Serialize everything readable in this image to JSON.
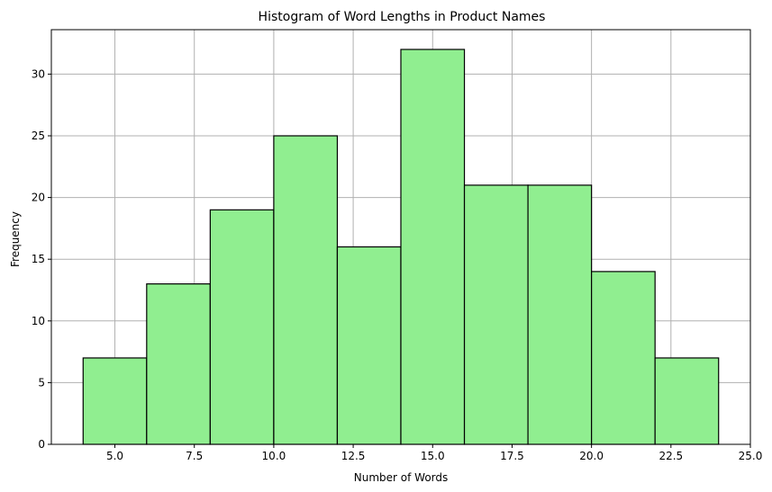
{
  "chart_data": {
    "type": "bar",
    "title": "Histogram of Word Lengths in Product Names",
    "xlabel": "Number of Words",
    "ylabel": "Frequency",
    "bins": [
      {
        "start": 4,
        "end": 6,
        "count": 7
      },
      {
        "start": 6,
        "end": 8,
        "count": 13
      },
      {
        "start": 8,
        "end": 10,
        "count": 19
      },
      {
        "start": 10,
        "end": 12,
        "count": 25
      },
      {
        "start": 12,
        "end": 14,
        "count": 16
      },
      {
        "start": 14,
        "end": 16,
        "count": 32
      },
      {
        "start": 16,
        "end": 18,
        "count": 21
      },
      {
        "start": 18,
        "end": 20,
        "count": 21
      },
      {
        "start": 20,
        "end": 22,
        "count": 14
      },
      {
        "start": 22,
        "end": 24,
        "count": 7
      }
    ],
    "xlim": [
      3,
      25
    ],
    "ylim": [
      0,
      33.6
    ],
    "xticks": [
      5.0,
      7.5,
      10.0,
      12.5,
      15.0,
      17.5,
      20.0,
      22.5,
      25.0
    ],
    "xtick_labels": [
      "5.0",
      "7.5",
      "10.0",
      "12.5",
      "15.0",
      "17.5",
      "20.0",
      "22.5",
      "25.0"
    ],
    "yticks": [
      0,
      5,
      10,
      15,
      20,
      25,
      30
    ],
    "ytick_labels": [
      "0",
      "5",
      "10",
      "15",
      "20",
      "25",
      "30"
    ],
    "grid": true,
    "colors": {
      "bar_fill": "#90ee90",
      "bar_edge": "#000000",
      "grid": "#b0b0b0"
    }
  }
}
